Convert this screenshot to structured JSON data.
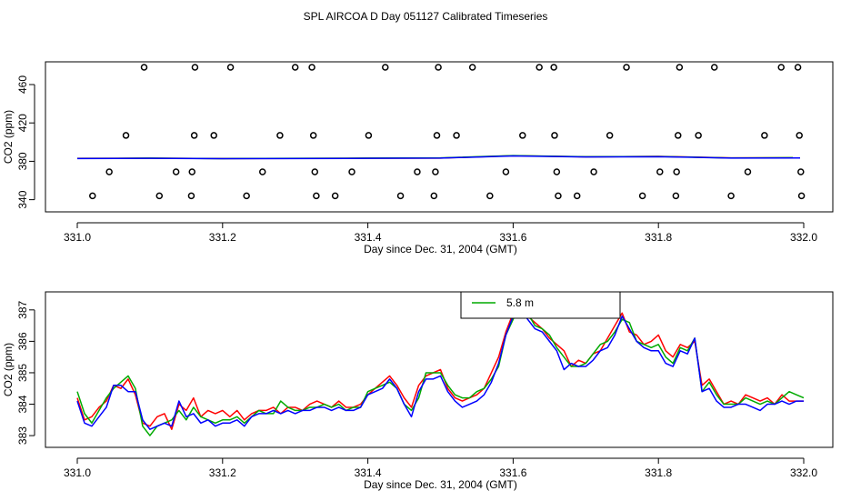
{
  "title": "SPL AIRCOA D  Day 051127  Calibrated Timeseries",
  "chart_data": [
    {
      "type": "scatter",
      "xlabel": "Day since Dec. 31, 2004 (GMT)",
      "ylabel": "CO2 (ppm)",
      "xlim": [
        331.0,
        332.0
      ],
      "ylim": [
        333,
        478
      ],
      "xticks": [
        "331.0",
        "331.2",
        "331.4",
        "331.6",
        "331.8",
        "332.0"
      ],
      "yticks": [
        "340",
        "380",
        "420",
        "460"
      ],
      "points": [
        [
          331.092,
          478
        ],
        [
          331.162,
          478
        ],
        [
          331.211,
          478
        ],
        [
          331.3,
          478
        ],
        [
          331.323,
          478
        ],
        [
          331.424,
          478
        ],
        [
          331.497,
          478
        ],
        [
          331.544,
          478
        ],
        [
          331.636,
          478
        ],
        [
          331.656,
          478
        ],
        [
          331.756,
          478
        ],
        [
          331.829,
          478
        ],
        [
          331.877,
          478
        ],
        [
          331.969,
          478
        ],
        [
          331.992,
          478
        ],
        [
          331.067,
          407
        ],
        [
          331.161,
          407
        ],
        [
          331.188,
          407
        ],
        [
          331.279,
          407
        ],
        [
          331.325,
          407
        ],
        [
          331.401,
          407
        ],
        [
          331.495,
          407
        ],
        [
          331.522,
          407
        ],
        [
          331.613,
          407
        ],
        [
          331.657,
          407
        ],
        [
          331.733,
          407
        ],
        [
          331.827,
          407
        ],
        [
          331.855,
          407
        ],
        [
          331.946,
          407
        ],
        [
          331.994,
          407
        ],
        [
          331.044,
          369
        ],
        [
          331.136,
          369
        ],
        [
          331.158,
          369
        ],
        [
          331.255,
          369
        ],
        [
          331.327,
          369
        ],
        [
          331.378,
          369
        ],
        [
          331.468,
          369
        ],
        [
          331.493,
          369
        ],
        [
          331.59,
          369
        ],
        [
          331.66,
          369
        ],
        [
          331.711,
          369
        ],
        [
          331.802,
          369
        ],
        [
          331.825,
          369
        ],
        [
          331.923,
          369
        ],
        [
          331.996,
          369
        ],
        [
          331.021,
          344
        ],
        [
          331.113,
          344
        ],
        [
          331.157,
          344
        ],
        [
          331.233,
          344
        ],
        [
          331.329,
          344
        ],
        [
          331.355,
          344
        ],
        [
          331.445,
          344
        ],
        [
          331.491,
          344
        ],
        [
          331.568,
          344
        ],
        [
          331.662,
          344
        ],
        [
          331.688,
          344
        ],
        [
          331.778,
          344
        ],
        [
          331.824,
          344
        ],
        [
          331.9,
          344
        ],
        [
          331.997,
          344
        ]
      ],
      "lines": [
        {
          "color": "#ff0000",
          "x": [
            331.0,
            331.1,
            331.2,
            331.3,
            331.4,
            331.5,
            331.6,
            331.7,
            331.8,
            331.9,
            331.985
          ],
          "y": [
            383.1,
            383.2,
            382.9,
            383.0,
            383.2,
            383.4,
            385.8,
            384.6,
            385.1,
            383.6,
            383.7
          ]
        },
        {
          "color": "#00aa00",
          "x": [
            331.0,
            331.1,
            331.2,
            331.3,
            331.4,
            331.5,
            331.6,
            331.7,
            331.8,
            331.9,
            331.985
          ],
          "y": [
            383.0,
            383.3,
            382.8,
            383.1,
            383.3,
            383.6,
            385.9,
            384.8,
            385.0,
            383.5,
            383.8
          ]
        },
        {
          "color": "#0000ff",
          "x": [
            331.0,
            331.1,
            331.2,
            331.3,
            331.4,
            331.5,
            331.6,
            331.7,
            331.8,
            331.9,
            331.995
          ],
          "y": [
            382.9,
            383.1,
            382.8,
            382.9,
            383.1,
            383.3,
            385.6,
            384.5,
            384.8,
            383.4,
            383.5
          ]
        }
      ]
    },
    {
      "type": "line",
      "xlabel": "Day since Dec. 31, 2004 (GMT)",
      "ylabel": "CO2 (ppm)",
      "xlim": [
        331.0,
        332.0
      ],
      "ylim": [
        382.8,
        387.4
      ],
      "xticks": [
        "331.0",
        "331.2",
        "331.4",
        "331.6",
        "331.8",
        "332.0"
      ],
      "yticks": [
        "383",
        "384",
        "385",
        "386",
        "387"
      ],
      "legend": {
        "placement": "top-center",
        "entries": [
          {
            "label": "5.8 m",
            "color": "#00aa00"
          }
        ]
      },
      "x": [
        331.0,
        331.01,
        331.02,
        331.03,
        331.04,
        331.05,
        331.06,
        331.07,
        331.08,
        331.09,
        331.1,
        331.11,
        331.12,
        331.13,
        331.14,
        331.15,
        331.16,
        331.17,
        331.18,
        331.19,
        331.2,
        331.21,
        331.22,
        331.23,
        331.24,
        331.25,
        331.26,
        331.27,
        331.28,
        331.29,
        331.3,
        331.31,
        331.32,
        331.33,
        331.34,
        331.35,
        331.36,
        331.37,
        331.38,
        331.39,
        331.4,
        331.41,
        331.42,
        331.43,
        331.44,
        331.45,
        331.46,
        331.47,
        331.48,
        331.49,
        331.5,
        331.51,
        331.52,
        331.53,
        331.54,
        331.55,
        331.56,
        331.57,
        331.58,
        331.59,
        331.6,
        331.61,
        331.62,
        331.63,
        331.64,
        331.65,
        331.66,
        331.67,
        331.68,
        331.69,
        331.7,
        331.71,
        331.72,
        331.73,
        331.74,
        331.75,
        331.76,
        331.77,
        331.78,
        331.79,
        331.8,
        331.81,
        331.82,
        331.83,
        331.84,
        331.85,
        331.86,
        331.87,
        331.88,
        331.89,
        331.9,
        331.91,
        331.92,
        331.93,
        331.94,
        331.95,
        331.96,
        331.97,
        331.98,
        331.99,
        332.0
      ],
      "series": [
        {
          "color": "#ff0000",
          "values": [
            384.2,
            383.5,
            383.6,
            383.9,
            384.1,
            384.6,
            384.5,
            384.8,
            384.3,
            383.4,
            383.3,
            383.6,
            383.7,
            383.2,
            384.0,
            383.8,
            384.2,
            383.6,
            383.8,
            383.7,
            383.8,
            383.6,
            383.8,
            383.5,
            383.7,
            383.8,
            383.8,
            383.9,
            383.7,
            383.9,
            383.9,
            383.8,
            384.0,
            384.1,
            384.0,
            383.9,
            384.1,
            383.9,
            383.9,
            384.0,
            384.3,
            384.5,
            384.7,
            384.9,
            384.6,
            384.2,
            383.9,
            384.6,
            384.9,
            385.0,
            385.1,
            384.5,
            384.2,
            384.1,
            384.2,
            384.3,
            384.5,
            385.0,
            385.5,
            386.3,
            386.9,
            387.1,
            386.8,
            386.6,
            386.4,
            386.1,
            385.9,
            385.7,
            385.2,
            385.4,
            385.3,
            385.6,
            385.7,
            386.1,
            386.5,
            386.9,
            386.3,
            386.2,
            385.9,
            386.0,
            386.2,
            385.7,
            385.5,
            385.9,
            385.8,
            386.0,
            384.6,
            384.8,
            384.4,
            384.0,
            384.1,
            384.0,
            384.3,
            384.2,
            384.1,
            384.2,
            384.0,
            384.3,
            384.1,
            384.1,
            384.1
          ]
        },
        {
          "color": "#00aa00",
          "values": [
            384.4,
            383.7,
            383.4,
            383.8,
            384.2,
            384.5,
            384.7,
            384.9,
            384.5,
            383.3,
            383.0,
            383.3,
            383.4,
            383.5,
            383.8,
            383.5,
            383.9,
            383.6,
            383.5,
            383.4,
            383.5,
            383.5,
            383.6,
            383.4,
            383.6,
            383.8,
            383.7,
            383.7,
            384.1,
            383.9,
            383.8,
            383.8,
            383.9,
            383.9,
            384.0,
            383.9,
            384.0,
            383.8,
            383.9,
            383.9,
            384.4,
            384.5,
            384.6,
            384.7,
            384.5,
            384.0,
            383.8,
            384.2,
            385.0,
            385.0,
            385.0,
            384.6,
            384.3,
            384.2,
            384.2,
            384.4,
            384.5,
            384.8,
            385.2,
            386.2,
            386.7,
            387.2,
            386.9,
            386.5,
            386.4,
            386.2,
            385.8,
            385.5,
            385.2,
            385.2,
            385.3,
            385.6,
            385.9,
            386.0,
            386.3,
            386.7,
            386.6,
            386.0,
            385.9,
            385.8,
            385.9,
            385.5,
            385.3,
            385.8,
            385.7,
            386.1,
            384.4,
            384.7,
            384.3,
            384.0,
            384.0,
            384.0,
            384.2,
            384.1,
            384.0,
            384.1,
            384.0,
            384.2,
            384.4,
            384.3,
            384.2
          ]
        },
        {
          "color": "#0000ff",
          "values": [
            384.1,
            383.4,
            383.3,
            383.6,
            383.9,
            384.6,
            384.6,
            384.4,
            384.4,
            383.5,
            383.2,
            383.3,
            383.4,
            383.3,
            384.1,
            383.6,
            383.7,
            383.4,
            383.5,
            383.3,
            383.4,
            383.4,
            383.5,
            383.3,
            383.6,
            383.7,
            383.7,
            383.8,
            383.7,
            383.8,
            383.7,
            383.8,
            383.8,
            383.9,
            383.9,
            383.8,
            383.9,
            383.8,
            383.8,
            383.9,
            384.3,
            384.4,
            384.5,
            384.8,
            384.5,
            384.0,
            383.6,
            384.4,
            384.8,
            384.8,
            384.9,
            384.4,
            384.1,
            383.9,
            384.0,
            384.1,
            384.3,
            384.7,
            385.3,
            386.2,
            386.8,
            387.0,
            386.7,
            386.4,
            386.3,
            386.0,
            385.7,
            385.1,
            385.3,
            385.2,
            385.2,
            385.4,
            385.7,
            385.8,
            386.2,
            386.8,
            386.4,
            386.0,
            385.8,
            385.7,
            385.7,
            385.3,
            385.2,
            385.7,
            385.6,
            386.1,
            384.4,
            384.5,
            384.1,
            383.9,
            383.9,
            384.0,
            384.0,
            383.9,
            383.8,
            384.0,
            384.0,
            384.1,
            384.0,
            384.1,
            384.1
          ]
        }
      ]
    }
  ]
}
